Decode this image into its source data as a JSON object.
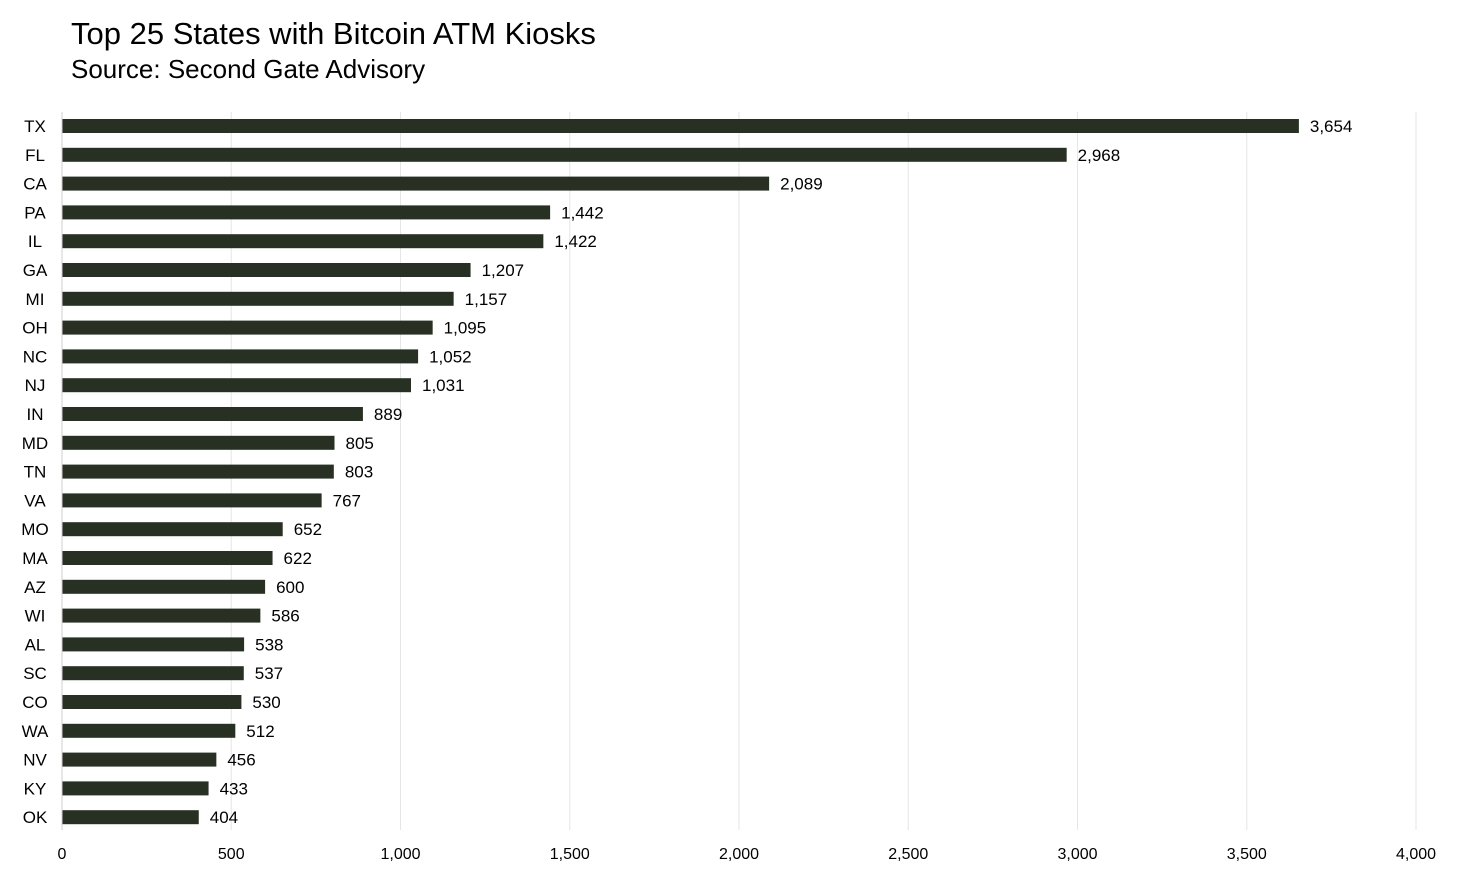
{
  "chart_data": {
    "type": "bar",
    "orientation": "horizontal",
    "title": "Top 25 States with Bitcoin ATM Kiosks",
    "subtitle": "Source: Second Gate Advisory",
    "xlabel": "",
    "ylabel": "",
    "xlim": [
      0,
      4000
    ],
    "x_ticks": [
      0,
      500,
      1000,
      1500,
      2000,
      2500,
      3000,
      3500,
      4000
    ],
    "x_tick_labels": [
      "0",
      "500",
      "1,000",
      "1,500",
      "2,000",
      "2,500",
      "3,000",
      "3,500",
      "4,000"
    ],
    "grid": "vertical",
    "legend": "none",
    "bar_color": "#273023",
    "categories": [
      "TX",
      "FL",
      "CA",
      "PA",
      "IL",
      "GA",
      "MI",
      "OH",
      "NC",
      "NJ",
      "IN",
      "MD",
      "TN",
      "VA",
      "MO",
      "MA",
      "AZ",
      "WI",
      "AL",
      "SC",
      "CO",
      "WA",
      "NV",
      "KY",
      "OK"
    ],
    "values": [
      3654,
      2968,
      2089,
      1442,
      1422,
      1207,
      1157,
      1095,
      1052,
      1031,
      889,
      805,
      803,
      767,
      652,
      622,
      600,
      586,
      538,
      537,
      530,
      512,
      456,
      433,
      404
    ],
    "value_labels": [
      "3,654",
      "2,968",
      "2,089",
      "1,442",
      "1,422",
      "1,207",
      "1,157",
      "1,095",
      "1,052",
      "1,031",
      "889",
      "805",
      "803",
      "767",
      "652",
      "622",
      "600",
      "586",
      "538",
      "537",
      "530",
      "512",
      "456",
      "433",
      "404"
    ]
  }
}
